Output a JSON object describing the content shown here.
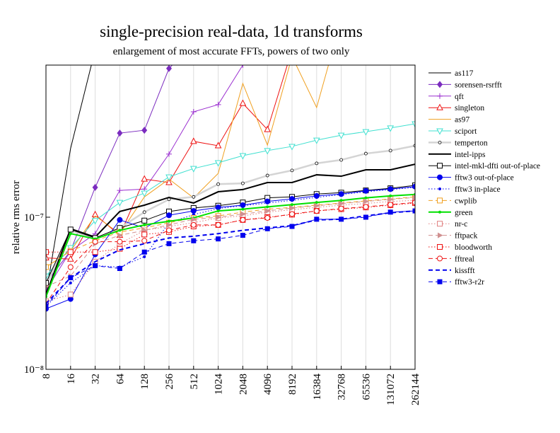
{
  "chart_data": {
    "type": "line",
    "title": "single-precision real-data, 1d transforms",
    "subtitle": "enlargement of most accurate FFTs, powers of two only",
    "ylabel": "relative rms error",
    "log_y": true,
    "grid": true,
    "legend": "right",
    "categories": [
      "8",
      "16",
      "32",
      "64",
      "128",
      "256",
      "512",
      "1024",
      "2048",
      "4096",
      "8192",
      "16384",
      "32768",
      "65536",
      "131072",
      "262144"
    ],
    "ylim": [
      1e-08,
      1e-06
    ],
    "yticks": [
      {
        "value": 1e-08,
        "label": "10⁻⁸"
      },
      {
        "value": 1e-07,
        "label": "10⁻⁷"
      }
    ],
    "series": [
      {
        "name": "as117",
        "color": "#000000",
        "marker": "none",
        "dash": "solid",
        "width": 1,
        "values": [
          3.1e-08,
          2.83e-07,
          1.26e-06,
          null,
          null,
          null,
          null,
          null,
          null,
          null,
          null,
          null,
          null,
          null,
          null,
          null
        ]
      },
      {
        "name": "sorensen-rsrfft",
        "color": "#7b2cbf",
        "marker": "diamond",
        "dash": "solid",
        "width": 1,
        "values": [
          3.7e-08,
          6e-08,
          1.57e-07,
          3.57e-07,
          3.73e-07,
          9.5e-07,
          1.4e-06,
          null,
          null,
          null,
          null,
          null,
          null,
          null,
          null,
          null
        ]
      },
      {
        "name": "qft",
        "color": "#9b30d0",
        "marker": "plus",
        "dash": "solid",
        "width": 1,
        "values": [
          3.3e-08,
          6e-08,
          7.8e-08,
          1.5e-07,
          1.53e-07,
          2.6e-07,
          4.93e-07,
          5.5e-07,
          1e-06,
          1.4e-06,
          null,
          null,
          null,
          null,
          null,
          null
        ]
      },
      {
        "name": "singleton",
        "color": "#ee1111",
        "marker": "triangle-open",
        "dash": "solid",
        "width": 1,
        "values": [
          5.4e-08,
          5.3e-08,
          1.04e-07,
          7.6e-08,
          1.78e-07,
          1.69e-07,
          3.15e-07,
          2.95e-07,
          5.6e-07,
          3.77e-07,
          1.26e-06,
          null,
          null,
          null,
          null,
          null
        ]
      },
      {
        "name": "as97",
        "color": "#f0a020",
        "marker": "none",
        "dash": "solid",
        "width": 1,
        "values": [
          4.7e-08,
          6e-08,
          1.02e-07,
          7.8e-08,
          1.36e-07,
          1.78e-07,
          1.34e-07,
          1.94e-07,
          7.57e-07,
          2.98e-07,
          1.14e-06,
          5.26e-07,
          2e-06,
          null,
          null,
          null
        ]
      },
      {
        "name": "sciport",
        "color": "#40e0d0",
        "marker": "triangle-down-open",
        "dash": "solid",
        "width": 1,
        "values": [
          4.1e-08,
          6.3e-08,
          9.5e-08,
          1.25e-07,
          1.44e-07,
          1.84e-07,
          2.09e-07,
          2.28e-07,
          2.54e-07,
          2.74e-07,
          2.92e-07,
          3.21e-07,
          3.46e-07,
          3.65e-07,
          3.86e-07,
          4.11e-07
        ]
      },
      {
        "name": "temperton",
        "color": "#d4d4d4",
        "marker": "circle-small-open",
        "dash": "solid",
        "width": 2.5,
        "values": [
          3.5e-08,
          8.2e-08,
          7.2e-08,
          8.5e-08,
          1.08e-07,
          1.31e-07,
          1.36e-07,
          1.65e-07,
          1.67e-07,
          1.88e-07,
          2.03e-07,
          2.26e-07,
          2.38e-07,
          2.62e-07,
          2.74e-07,
          2.95e-07
        ]
      },
      {
        "name": "intel-ipps",
        "color": "#000000",
        "marker": "none",
        "dash": "solid",
        "width": 2,
        "values": [
          3.1e-08,
          8.4e-08,
          7.4e-08,
          1.09e-07,
          1.2e-07,
          1.35e-07,
          1.24e-07,
          1.47e-07,
          1.52e-07,
          1.69e-07,
          1.69e-07,
          1.9e-07,
          1.86e-07,
          2.05e-07,
          2.05e-07,
          2.23e-07
        ]
      },
      {
        "name": "intel-mkl-dfti out-of-place",
        "color": "#000000",
        "marker": "square-open",
        "dash": "solid",
        "width": 1,
        "values": [
          3.7e-08,
          8.3e-08,
          7.3e-08,
          8.5e-08,
          9.5e-08,
          1.09e-07,
          1.15e-07,
          1.19e-07,
          1.25e-07,
          1.34e-07,
          1.36e-07,
          1.42e-07,
          1.45e-07,
          1.5e-07,
          1.55e-07,
          1.62e-07
        ]
      },
      {
        "name": "fftw3 out-of-place",
        "color": "#0000ee",
        "marker": "circle",
        "dash": "solid",
        "width": 1,
        "values": [
          2.5e-08,
          2.9e-08,
          5.7e-08,
          9.6e-08,
          8.5e-08,
          1.03e-07,
          1.1e-07,
          1.16e-07,
          1.2e-07,
          1.27e-07,
          1.32e-07,
          1.38e-07,
          1.42e-07,
          1.49e-07,
          1.53e-07,
          1.59e-07
        ]
      },
      {
        "name": "fftw3 in-place",
        "color": "#0000ee",
        "marker": "dot",
        "dash": "dotted",
        "width": 1,
        "values": [
          2.6e-08,
          3.7e-08,
          4.8e-08,
          4.7e-08,
          5.5e-08,
          9.2e-08,
          1.04e-07,
          1.14e-07,
          1.19e-07,
          1.24e-07,
          1.29e-07,
          1.35e-07,
          1.41e-07,
          1.47e-07,
          1.52e-07,
          1.57e-07
        ]
      },
      {
        "name": "cwplib",
        "color": "#f0a020",
        "marker": "square-open",
        "dash": "dashed",
        "width": 1,
        "values": [
          4.7e-08,
          6e-08,
          7e-08,
          8e-08,
          8.5e-08,
          9.2e-08,
          9.9e-08,
          1.02e-07,
          1.08e-07,
          1.13e-07,
          1.16e-07,
          1.2e-07,
          1.24e-07,
          1.28e-07,
          1.32e-07,
          1.36e-07
        ]
      },
      {
        "name": "green",
        "color": "#00e000",
        "marker": "dot",
        "dash": "solid",
        "width": 2,
        "values": [
          3e-08,
          7.8e-08,
          7.2e-08,
          8.2e-08,
          8.9e-08,
          9.4e-08,
          9.9e-08,
          1.1e-07,
          1.13e-07,
          1.17e-07,
          1.21e-07,
          1.25e-07,
          1.29e-07,
          1.34e-07,
          1.38e-07,
          1.41e-07
        ]
      },
      {
        "name": "nr-c",
        "color": "#e08080",
        "marker": "square-open",
        "dash": "dotted",
        "width": 1,
        "values": [
          2.8e-08,
          3.1e-08,
          5.1e-08,
          6.7e-08,
          8.2e-08,
          8.7e-08,
          9.2e-08,
          9.9e-08,
          1.02e-07,
          1.08e-07,
          1.12e-07,
          1.16e-07,
          1.2e-07,
          1.23e-07,
          1.27e-07,
          1.29e-07
        ]
      },
      {
        "name": "fftpack",
        "color": "#d09090",
        "marker": "triangle-right",
        "dash": "dashed",
        "width": 1,
        "values": [
          3.5e-08,
          4.1e-08,
          6.7e-08,
          7.6e-08,
          8.2e-08,
          8.9e-08,
          9.7e-08,
          1e-07,
          1.05e-07,
          1.1e-07,
          1.15e-07,
          1.19e-07,
          1.23e-07,
          1.27e-07,
          1.31e-07,
          1.35e-07
        ]
      },
      {
        "name": "bloodworth",
        "color": "#ee1111",
        "marker": "square-open",
        "dash": "dotted",
        "width": 1,
        "values": [
          5.9e-08,
          5.9e-08,
          5.9e-08,
          6.2e-08,
          7.7e-08,
          8e-08,
          8.7e-08,
          8.9e-08,
          9.6e-08,
          1e-07,
          1.04e-07,
          1.1e-07,
          1.13e-07,
          1.16e-07,
          1.2e-07,
          1.24e-07
        ]
      },
      {
        "name": "fftreal",
        "color": "#ee1111",
        "marker": "circle-open",
        "dash": "dashed",
        "width": 1,
        "values": [
          2.7e-08,
          4.7e-08,
          6.9e-08,
          6.9e-08,
          7e-08,
          8.2e-08,
          8.9e-08,
          8.9e-08,
          9.6e-08,
          9.9e-08,
          1.05e-07,
          1.1e-07,
          1.14e-07,
          1.17e-07,
          1.21e-07,
          1.25e-07
        ]
      },
      {
        "name": "kissfft",
        "color": "#0000ee",
        "marker": "none",
        "dash": "dashed",
        "width": 2,
        "values": [
          2.7e-08,
          4e-08,
          5.1e-08,
          6.1e-08,
          6.7e-08,
          7.3e-08,
          7.5e-08,
          7.8e-08,
          8.2e-08,
          8.5e-08,
          8.8e-08,
          9.6e-08,
          9.7e-08,
          1.02e-07,
          1.07e-07,
          1.1e-07
        ]
      },
      {
        "name": "fftw3-r2r",
        "color": "#0000ee",
        "marker": "square",
        "dash": "dashed",
        "width": 1,
        "values": [
          2.6e-08,
          4e-08,
          4.8e-08,
          4.6e-08,
          5.9e-08,
          6.7e-08,
          7e-08,
          7.2e-08,
          7.6e-08,
          8.4e-08,
          8.7e-08,
          9.7e-08,
          9.7e-08,
          1e-07,
          1.08e-07,
          1.1e-07
        ]
      }
    ]
  }
}
